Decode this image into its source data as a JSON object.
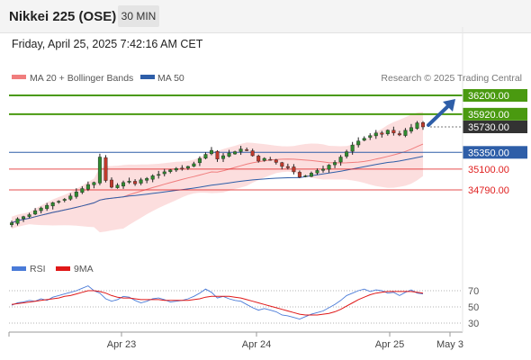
{
  "header": {
    "title": "Nikkei 225 (OSE)",
    "interval": "30 MIN",
    "datetime": "Friday, April 25, 2025 7:42:16 AM CET"
  },
  "legend": {
    "ma20": "MA 20 + Bollinger Bands",
    "ma50": "MA 50",
    "copyright": "Research © 2025 Trading Central",
    "ma20_color": "#f07d7d",
    "ma50_color": "#2e5ea8"
  },
  "rsi_legend": {
    "rsi": "RSI",
    "ma9": "9MA",
    "rsi_color": "#4a7bd8",
    "ma9_color": "#e01818"
  },
  "chart_data": [
    {
      "type": "candlestick",
      "y_scale_hidden": true,
      "levels": [
        {
          "label": "36200.00",
          "value": 36200,
          "color": "#4a9a10",
          "kind": "target"
        },
        {
          "label": "35920.00",
          "value": 35920,
          "color": "#4a9a10",
          "kind": "target"
        },
        {
          "label": "35730.00",
          "value": 35730,
          "color": "#333333",
          "kind": "last-price"
        },
        {
          "label": "35350.00",
          "value": 35350,
          "color": "#2e5ea8",
          "kind": "pivot"
        },
        {
          "label": "35100.00",
          "value": 35100,
          "color": "#e02020",
          "kind": "support"
        },
        {
          "label": "34790.00",
          "value": 34790,
          "color": "#e02020",
          "kind": "support"
        }
      ],
      "close_series": [
        34300,
        34360,
        34390,
        34420,
        34480,
        34520,
        34560,
        34600,
        34620,
        34650,
        34700,
        34760,
        34810,
        34870,
        34900,
        35280,
        34930,
        34830,
        34860,
        34900,
        34920,
        34880,
        34940,
        34960,
        35000,
        35020,
        35060,
        35090,
        35110,
        35100,
        35140,
        35180,
        35260,
        35320,
        35380,
        35250,
        35300,
        35340,
        35360,
        35400,
        35380,
        35300,
        35220,
        35260,
        35240,
        35200,
        35140,
        35120,
        35060,
        34980,
        35000,
        35040,
        35080,
        35100,
        35160,
        35200,
        35280,
        35360,
        35460,
        35520,
        35560,
        35600,
        35640,
        35620,
        35680,
        35640,
        35610,
        35680,
        35720,
        35790,
        35730
      ],
      "x_ticks": [
        "Apr 23",
        "Apr 24",
        "Apr 25",
        "May 3"
      ],
      "arrow": "up"
    },
    {
      "type": "line",
      "name": "RSI",
      "y_ticks": [
        70,
        50,
        30
      ],
      "series": [
        {
          "name": "RSI",
          "values": [
            52,
            55,
            56,
            58,
            57,
            60,
            58,
            62,
            64,
            66,
            68,
            70,
            73,
            76,
            70,
            67,
            60,
            57,
            59,
            63,
            62,
            58,
            55,
            57,
            60,
            61,
            59,
            56,
            57,
            58,
            60,
            63,
            67,
            72,
            68,
            61,
            63,
            60,
            58,
            57,
            53,
            49,
            46,
            48,
            46,
            44,
            40,
            39,
            37,
            35,
            38,
            41,
            43,
            45,
            49,
            53,
            58,
            64,
            67,
            70,
            72,
            69,
            71,
            70,
            67,
            68,
            64,
            68,
            71,
            67,
            66
          ]
        },
        {
          "name": "9MA",
          "values": [
            53,
            54,
            55,
            56,
            57,
            58,
            59,
            60,
            61,
            63,
            64,
            66,
            68,
            70,
            70,
            69,
            67,
            64,
            62,
            61,
            61,
            60,
            59,
            59,
            59,
            59,
            58,
            58,
            58,
            58,
            58,
            59,
            60,
            62,
            63,
            63,
            63,
            63,
            62,
            61,
            59,
            57,
            55,
            53,
            51,
            49,
            47,
            45,
            43,
            41,
            40,
            40,
            40,
            41,
            42,
            44,
            47,
            51,
            55,
            59,
            62,
            65,
            67,
            68,
            69,
            69,
            69,
            69,
            69,
            68,
            67
          ]
        }
      ]
    }
  ]
}
